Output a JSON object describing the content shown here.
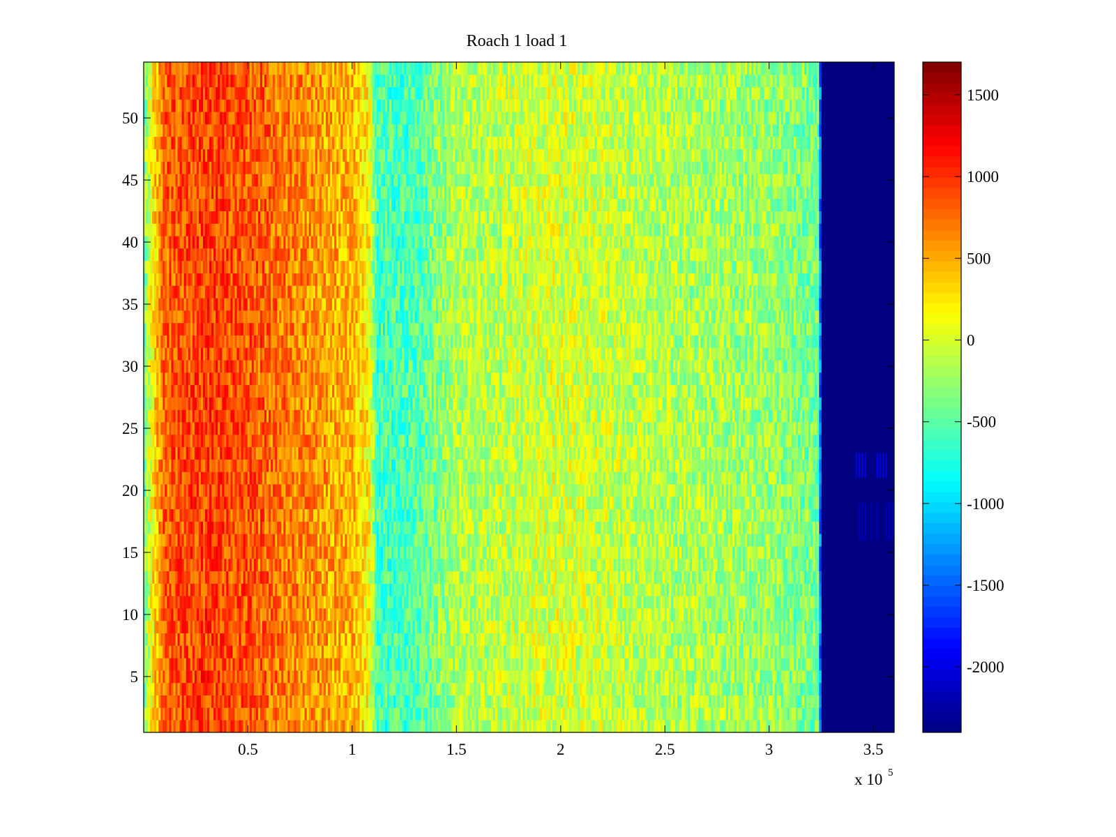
{
  "chart_data": {
    "type": "heatmap",
    "title": "Roach 1 load 1",
    "xlabel": "",
    "ylabel": "",
    "x_exponent_label": "x 10",
    "x_exponent_power": "5",
    "xlim": [
      0,
      3.6
    ],
    "ylim": [
      0.5,
      54.5
    ],
    "x_ticks": [
      {
        "value": 0.5,
        "label": "0.5"
      },
      {
        "value": 1,
        "label": "1"
      },
      {
        "value": 1.5,
        "label": "1.5"
      },
      {
        "value": 2,
        "label": "2"
      },
      {
        "value": 2.5,
        "label": "2.5"
      },
      {
        "value": 3,
        "label": "3"
      },
      {
        "value": 3.5,
        "label": "3.5"
      }
    ],
    "y_ticks": [
      {
        "value": 5,
        "label": "5"
      },
      {
        "value": 10,
        "label": "10"
      },
      {
        "value": 15,
        "label": "15"
      },
      {
        "value": 20,
        "label": "20"
      },
      {
        "value": 25,
        "label": "25"
      },
      {
        "value": 30,
        "label": "30"
      },
      {
        "value": 35,
        "label": "35"
      },
      {
        "value": 40,
        "label": "40"
      },
      {
        "value": 45,
        "label": "45"
      },
      {
        "value": 50,
        "label": "50"
      }
    ],
    "rows": 54,
    "colormap": "jet",
    "colorbar": {
      "range": [
        -2400,
        1700
      ],
      "ticks": [
        {
          "value": 1500,
          "label": "1500"
        },
        {
          "value": 1000,
          "label": "1000"
        },
        {
          "value": 500,
          "label": "500"
        },
        {
          "value": 0,
          "label": "0"
        },
        {
          "value": -500,
          "label": "-500"
        },
        {
          "value": -1000,
          "label": "-1000"
        },
        {
          "value": -1500,
          "label": "-1500"
        },
        {
          "value": -2000,
          "label": "-2000"
        }
      ]
    },
    "column_profile": [
      {
        "x": 0.0,
        "value": -400
      },
      {
        "x": 0.05,
        "value": 300
      },
      {
        "x": 0.1,
        "value": 800
      },
      {
        "x": 0.3,
        "value": 950
      },
      {
        "x": 0.5,
        "value": 850
      },
      {
        "x": 0.8,
        "value": 600
      },
      {
        "x": 1.0,
        "value": 450
      },
      {
        "x": 1.08,
        "value": 200
      },
      {
        "x": 1.12,
        "value": -600
      },
      {
        "x": 1.3,
        "value": -550
      },
      {
        "x": 1.5,
        "value": -150
      },
      {
        "x": 2.0,
        "value": 0
      },
      {
        "x": 2.5,
        "value": -150
      },
      {
        "x": 3.0,
        "value": -250
      },
      {
        "x": 3.24,
        "value": -400
      },
      {
        "x": 3.25,
        "value": -2400
      },
      {
        "x": 3.6,
        "value": -2400
      }
    ],
    "background_value": -2400,
    "anomalies": [
      {
        "x_range": [
          3.4,
          3.6
        ],
        "y_range": [
          21,
          23
        ],
        "value": -2050
      },
      {
        "x_range": [
          3.4,
          3.6
        ],
        "y_range": [
          16,
          19
        ],
        "value": -2200
      }
    ]
  }
}
